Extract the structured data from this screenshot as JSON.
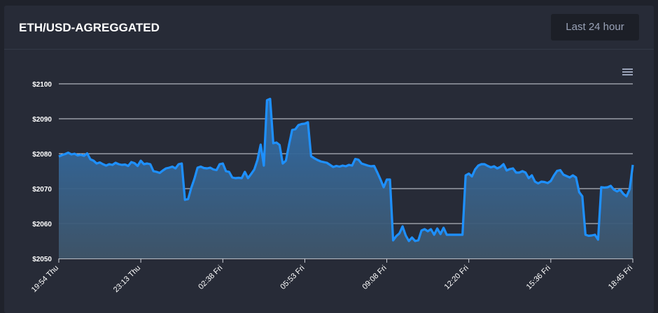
{
  "header": {
    "title": "ETH/USD-AGREGGATED",
    "range_button": "Last 24 hour"
  },
  "menu_icon": "hamburger-menu-icon",
  "colors": {
    "line": "#1e90ff",
    "area_top": "#2e6fb0",
    "area_bottom": "#3f5569",
    "grid": "#d0d4dc",
    "card_bg": "#272b37",
    "page_bg": "#1f222b"
  },
  "chart_data": {
    "type": "area",
    "title": "",
    "xlabel": "",
    "ylabel": "",
    "ylim": [
      2050,
      2100
    ],
    "y_ticks": [
      2050,
      2060,
      2070,
      2080,
      2090,
      2100
    ],
    "y_tick_labels": [
      "$2050",
      "$2060",
      "$2070",
      "$2080",
      "$2090",
      "$2100"
    ],
    "x_ticks": [
      "19:54 Thu",
      "23:13 Thu",
      "02:38 Fri",
      "05:53 Fri",
      "09:08 Fri",
      "12:20 Fri",
      "15:36 Fri",
      "18:45 Fri"
    ],
    "series": [
      {
        "values": [
          2079.2,
          2079.6,
          2079.9,
          2080.3,
          2079.8,
          2080.0,
          2079.5,
          2079.7,
          2079.4,
          2080.1,
          2078.4,
          2078.0,
          2077.2,
          2077.5,
          2077.0,
          2076.6,
          2077.0,
          2076.8,
          2077.4,
          2077.0,
          2076.8,
          2076.9,
          2076.5,
          2077.6,
          2077.3,
          2076.5,
          2078.0,
          2077.0,
          2077.2,
          2077.0,
          2075.0,
          2074.8,
          2074.5,
          2075.2,
          2075.8,
          2076.0,
          2076.3,
          2075.8,
          2077.0,
          2077.2,
          2066.8,
          2067.0,
          2070.2,
          2072.8,
          2076.0,
          2076.3,
          2075.9,
          2075.8,
          2076.0,
          2075.5,
          2075.3,
          2077.0,
          2077.2,
          2075.0,
          2074.8,
          2073.2,
          2073.0,
          2073.1,
          2073.0,
          2074.8,
          2073.0,
          2074.2,
          2075.5,
          2078.2,
          2082.6,
          2076.6,
          2095.3,
          2095.7,
          2083.0,
          2083.2,
          2082.5,
          2077.2,
          2078.0,
          2082.6,
          2086.8,
          2087.0,
          2088.2,
          2088.5,
          2088.6,
          2089.0,
          2079.3,
          2078.7,
          2078.2,
          2077.8,
          2077.6,
          2077.4,
          2076.8,
          2076.2,
          2076.5,
          2076.3,
          2076.6,
          2076.4,
          2076.8,
          2076.6,
          2078.5,
          2078.3,
          2077.2,
          2076.9,
          2076.6,
          2076.4,
          2076.5,
          2074.6,
          2072.6,
          2070.4,
          2072.6,
          2072.6,
          2055.2,
          2056.4,
          2057.2,
          2059.2,
          2056.6,
          2055.0,
          2056.0,
          2055.0,
          2055.2,
          2058.0,
          2058.4,
          2057.8,
          2058.4,
          2056.8,
          2058.6,
          2057.0,
          2058.8,
          2056.8,
          2056.8,
          2056.8,
          2056.8,
          2056.8,
          2056.8,
          2073.8,
          2074.3,
          2073.5,
          2075.5,
          2076.6,
          2077.0,
          2077.0,
          2076.5,
          2076.1,
          2076.4,
          2075.8,
          2076.2,
          2077.0,
          2075.2,
          2075.6,
          2075.8,
          2074.6,
          2074.6,
          2075.0,
          2074.6,
          2073.0,
          2073.8,
          2072.0,
          2071.5,
          2072.0,
          2071.9,
          2071.6,
          2072.2,
          2073.8,
          2075.1,
          2075.3,
          2074.0,
          2073.6,
          2073.2,
          2073.8,
          2073.2,
          2069.0,
          2067.8,
          2056.8,
          2056.5,
          2056.6,
          2056.8,
          2055.4,
          2070.4,
          2070.3,
          2070.4,
          2070.8,
          2069.7,
          2069.2,
          2069.7,
          2068.5,
          2067.8,
          2069.8,
          2076.8
        ]
      }
    ]
  }
}
